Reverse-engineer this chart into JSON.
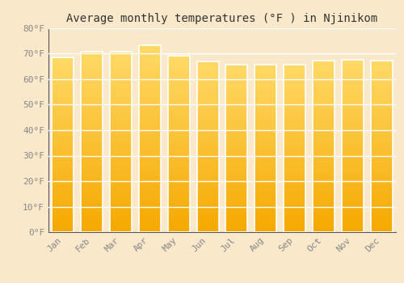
{
  "title": "Average monthly temperatures (°F ) in Njinikom",
  "months": [
    "Jan",
    "Feb",
    "Mar",
    "Apr",
    "May",
    "Jun",
    "Jul",
    "Aug",
    "Sep",
    "Oct",
    "Nov",
    "Dec"
  ],
  "values": [
    68.5,
    70.7,
    70.7,
    73.2,
    69.1,
    66.9,
    65.7,
    65.7,
    65.8,
    67.3,
    67.6,
    67.3
  ],
  "ylim": [
    0,
    80
  ],
  "yticks": [
    0,
    10,
    20,
    30,
    40,
    50,
    60,
    70,
    80
  ],
  "bar_color_bottom": "#F5A800",
  "bar_color_top": "#FFD966",
  "background_color": "#fae8cb",
  "grid_color": "#ffffff",
  "bar_edge_color": "#ffffff",
  "title_fontsize": 10,
  "tick_fontsize": 8,
  "tick_color": "#888888",
  "font_family": "monospace",
  "bar_width": 0.75
}
